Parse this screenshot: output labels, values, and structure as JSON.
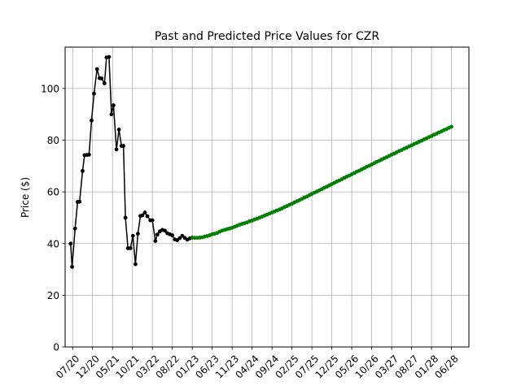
{
  "chart_data": {
    "type": "line",
    "title": "Past and Predicted Price Values for CZR",
    "xlabel": "",
    "ylabel": "Price ($)",
    "ylim": [
      0,
      116
    ],
    "yticks": [
      0,
      20,
      40,
      60,
      80,
      100
    ],
    "xlim": [
      -1.5,
      79.5
    ],
    "grid": true,
    "x_tick_labels": [
      "07/20",
      "12/20",
      "05/21",
      "10/21",
      "03/22",
      "08/22",
      "01/23",
      "06/23",
      "11/23",
      "04/24",
      "09/24",
      "02/25",
      "07/25",
      "12/25",
      "05/26",
      "10/26",
      "03/27",
      "08/27",
      "01/28",
      "06/28"
    ],
    "x_tick_positions": [
      0,
      4,
      8,
      12,
      16,
      20,
      24,
      28,
      32,
      36,
      40,
      44,
      48,
      52,
      56,
      60,
      64,
      68,
      72,
      76
    ],
    "series": [
      {
        "name": "",
        "color": "#000000",
        "x": [
          -0.4,
          -0.1,
          0.5,
          1.0,
          1.4,
          2.0,
          2.4,
          2.9,
          3.3,
          3.8,
          4.3,
          4.9,
          5.4,
          5.8,
          6.4,
          6.8,
          7.3,
          7.8,
          8.2,
          8.8,
          9.3,
          9.8,
          10.2,
          10.6,
          11.1,
          11.6,
          12.1,
          12.6,
          13.1,
          13.6,
          14.0,
          14.5,
          15.0,
          15.6,
          16.0,
          16.6,
          17.0,
          17.5,
          18.0,
          18.5,
          19.0,
          19.5,
          20.0,
          20.5,
          21.0,
          21.5,
          22.0,
          22.5,
          23.0,
          23.5,
          24.0
        ],
        "y": [
          40.0,
          31.0,
          45.8,
          56.1,
          56.2,
          68.1,
          74.2,
          74.3,
          74.4,
          87.6,
          98.0,
          107.5,
          104.0,
          103.9,
          102.0,
          112.0,
          112.2,
          90.0,
          93.5,
          76.4,
          84.1,
          77.8,
          77.8,
          50.0,
          38.2,
          38.2,
          43.0,
          32.0,
          43.8,
          50.7,
          50.9,
          52.0,
          50.6,
          49.0,
          49.0,
          41.0,
          43.5,
          44.7,
          45.3,
          45.0,
          44.0,
          43.6,
          43.2,
          41.6,
          41.3,
          42.1,
          43.0,
          42.2,
          41.5,
          42.0,
          42.3
        ]
      },
      {
        "name": "",
        "color": "#008000",
        "x": [
          24.0,
          24.5,
          25.0,
          25.5,
          26.0,
          26.5,
          27.0,
          27.5,
          28.0,
          28.5,
          29.0,
          29.5,
          30.0,
          30.5,
          31.0,
          31.5,
          32.0,
          32.5,
          33.0,
          33.5,
          34.0,
          34.5,
          35.0,
          35.5,
          36.0,
          36.5,
          37.0,
          37.5,
          38.0,
          38.5,
          39.0,
          39.5,
          40.0,
          40.5,
          41.0,
          41.5,
          42.0,
          42.5,
          43.0,
          43.5,
          44.0,
          44.5,
          45.0,
          45.5,
          46.0,
          46.5,
          47.0,
          47.5,
          48.0,
          48.5,
          49.0,
          49.5,
          50.0,
          50.5,
          51.0,
          51.5,
          52.0,
          52.5,
          53.0,
          53.5,
          54.0,
          54.5,
          55.0,
          55.5,
          56.0,
          56.5,
          57.0,
          57.5,
          58.0,
          58.5,
          59.0,
          59.5,
          60.0,
          60.5,
          61.0,
          61.5,
          62.0,
          62.5,
          63.0,
          63.5,
          64.0,
          64.5,
          65.0,
          65.5,
          66.0,
          66.5,
          67.0,
          67.5,
          68.0,
          68.5,
          69.0,
          69.5,
          70.0,
          70.5,
          71.0,
          71.5,
          72.0,
          72.5,
          73.0,
          73.5,
          74.0,
          74.5,
          75.0,
          75.5,
          76.0
        ],
        "y": [
          42.3,
          42.2,
          42.2,
          42.3,
          42.4,
          42.7,
          42.9,
          43.2,
          43.6,
          43.8,
          44.1,
          44.6,
          45.0,
          45.3,
          45.6,
          45.8,
          46.1,
          46.5,
          46.9,
          47.3,
          47.6,
          47.9,
          48.2,
          48.6,
          48.9,
          49.3,
          49.6,
          50.0,
          50.4,
          50.8,
          51.2,
          51.6,
          52.0,
          52.4,
          52.8,
          53.2,
          53.6,
          54.1,
          54.5,
          55.0,
          55.4,
          55.9,
          56.4,
          56.8,
          57.3,
          57.8,
          58.2,
          58.7,
          59.2,
          59.7,
          60.1,
          60.6,
          61.1,
          61.6,
          62.0,
          62.5,
          63.0,
          63.5,
          64.0,
          64.4,
          64.9,
          65.4,
          65.9,
          66.3,
          66.8,
          67.3,
          67.8,
          68.2,
          68.7,
          69.2,
          69.7,
          70.1,
          70.6,
          71.1,
          71.6,
          72.0,
          72.5,
          73.0,
          73.4,
          73.9,
          74.4,
          74.8,
          75.3,
          75.8,
          76.2,
          76.7,
          77.1,
          77.6,
          78.0,
          78.5,
          78.9,
          79.4,
          79.8,
          80.3,
          80.7,
          81.2,
          81.6,
          82.1,
          82.5,
          83.0,
          83.4,
          83.9,
          84.3,
          84.8,
          85.2
        ]
      }
    ]
  }
}
